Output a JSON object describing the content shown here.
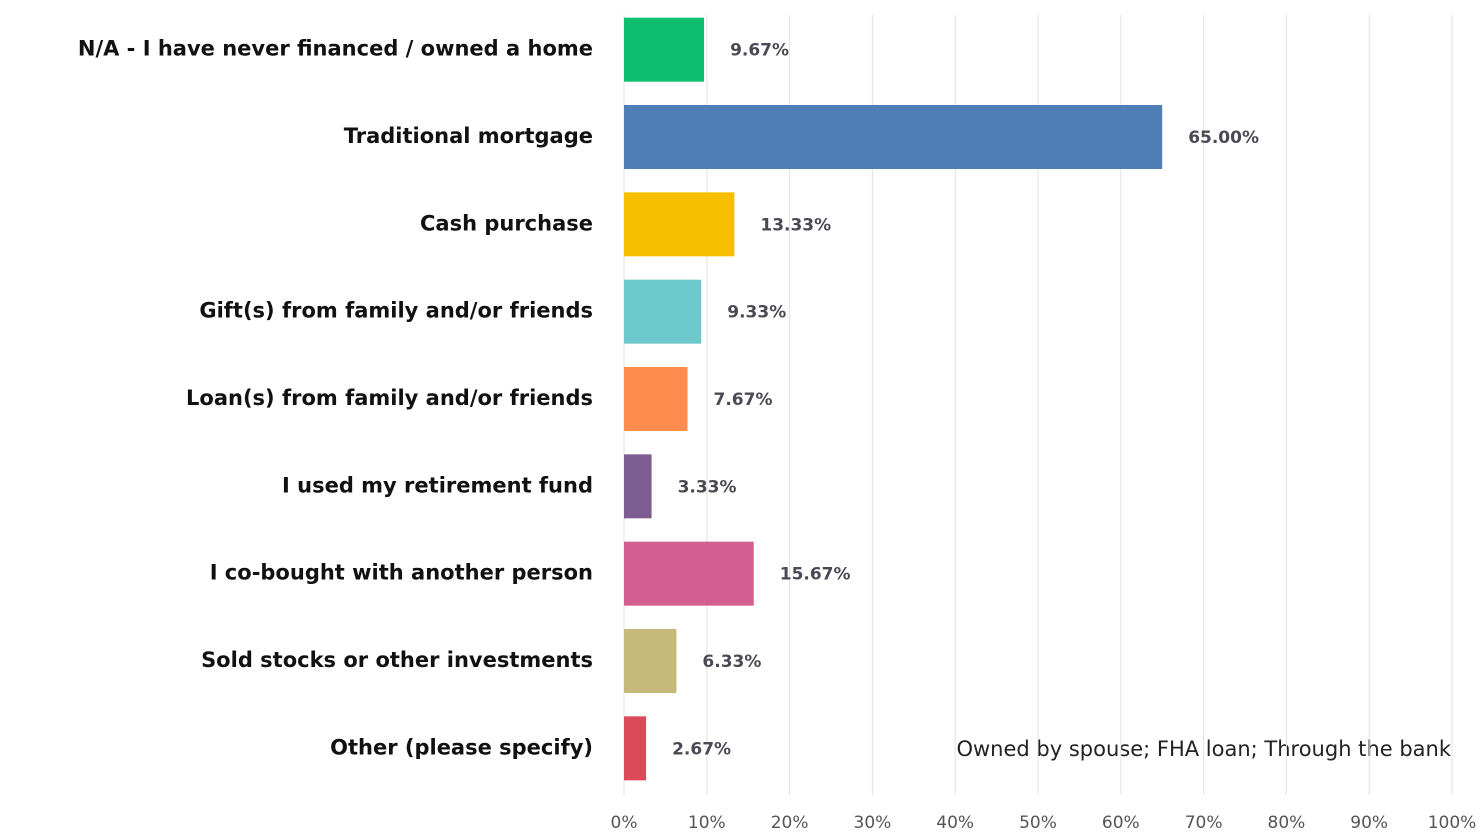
{
  "chart_data": {
    "type": "barh",
    "categories": [
      "N/A - I have never financed / owned a home",
      "Traditional mortgage",
      "Cash purchase",
      "Gift(s) from family and/or friends",
      "Loan(s) from family and/or friends",
      "I used my retirement fund",
      "I co-bought with another person",
      "Sold stocks or other investments",
      "Other (please specify)"
    ],
    "values": [
      9.67,
      65.0,
      13.33,
      9.33,
      7.67,
      3.33,
      15.67,
      6.33,
      2.67
    ],
    "value_labels": [
      "9.67%",
      "65.00%",
      "13.33%",
      "9.33%",
      "7.67%",
      "3.33%",
      "15.67%",
      "6.33%",
      "2.67%"
    ],
    "colors": [
      "#0bbf6e",
      "#4f7db5",
      "#f8bf00",
      "#6ec9cd",
      "#fe8c4f",
      "#7c5c91",
      "#d45e8f",
      "#c6ba7a",
      "#dc4b5b"
    ],
    "xlim": [
      0,
      100
    ],
    "xticks": [
      {
        "value": 0,
        "label": "0%"
      },
      {
        "value": 10,
        "label": "10%"
      },
      {
        "value": 20,
        "label": "20%"
      },
      {
        "value": 30,
        "label": "30%"
      },
      {
        "value": 40,
        "label": "40%"
      },
      {
        "value": 50,
        "label": "50%"
      },
      {
        "value": 60,
        "label": "60%"
      },
      {
        "value": 70,
        "label": "70%"
      },
      {
        "value": 80,
        "label": "80%"
      },
      {
        "value": 90,
        "label": "90%"
      },
      {
        "value": 100,
        "label": "100%"
      }
    ],
    "grid": true,
    "annotation": "Owned by spouse; FHA loan; Through the bank"
  }
}
